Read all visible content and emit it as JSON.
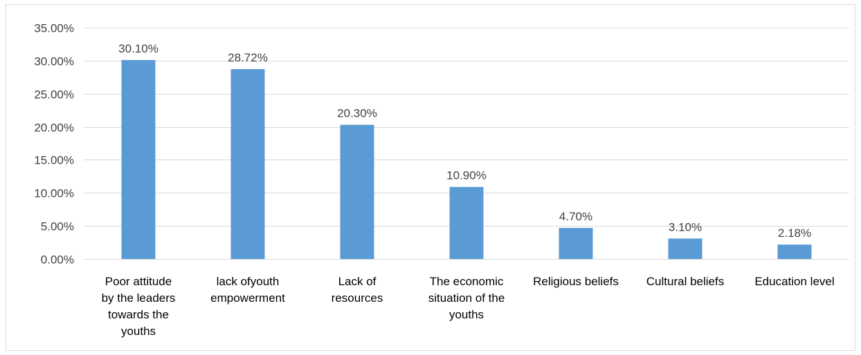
{
  "chart_data": {
    "type": "bar",
    "categories": [
      [
        "Poor attitude",
        "by the leaders",
        "towards the",
        "youths"
      ],
      [
        "lack ofyouth",
        "empowerment"
      ],
      [
        "Lack of",
        "resources"
      ],
      [
        "The economic",
        "situation of  the",
        "youths"
      ],
      [
        "Religious beliefs"
      ],
      [
        "Cultural beliefs"
      ],
      [
        "Education level"
      ]
    ],
    "values": [
      30.1,
      28.72,
      20.3,
      10.9,
      4.7,
      3.1,
      2.18
    ],
    "value_labels": [
      "30.10%",
      "28.72%",
      "20.30%",
      "10.90%",
      "4.70%",
      "3.10%",
      "2.18%"
    ],
    "y_ticks": [
      0,
      5,
      10,
      15,
      20,
      25,
      30,
      35
    ],
    "y_tick_labels": [
      "0.00%",
      "5.00%",
      "10.00%",
      "15.00%",
      "20.00%",
      "25.00%",
      "30.00%",
      "35.00%"
    ],
    "ylim": [
      0,
      35
    ],
    "grid": true,
    "title": "",
    "xlabel": "",
    "ylabel": "",
    "bar_color": "#5b9bd5",
    "grid_color": "#d9d9d9",
    "text_color": "#404040"
  }
}
